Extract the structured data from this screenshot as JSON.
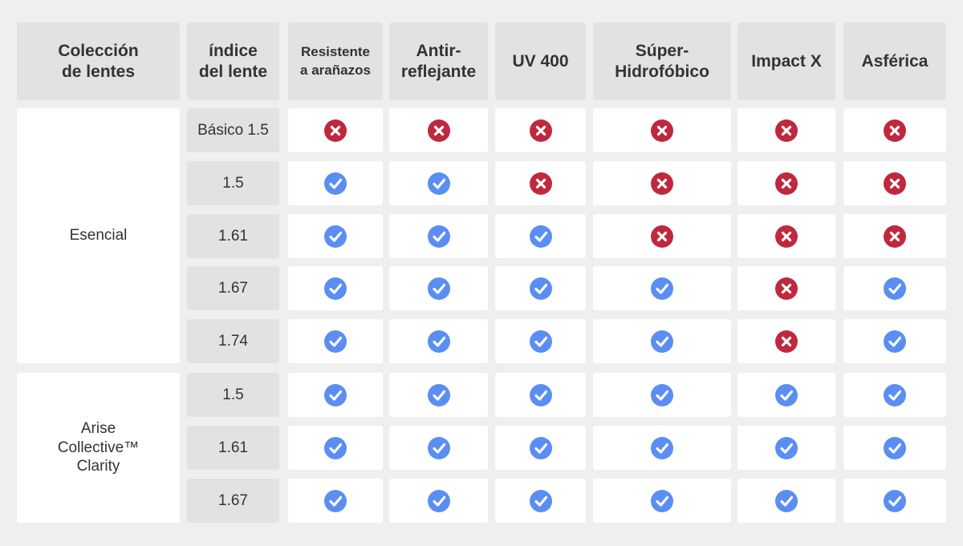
{
  "header": {
    "collection": "Colección\nde lentes",
    "index": "índice\ndel lente",
    "features": [
      "Resistente\na arañazos",
      "Antir-\nreflejante",
      "UV 400",
      "Súper-\nHidrofóbico",
      "Impact X",
      "Asférica"
    ]
  },
  "collections": [
    {
      "name": "Esencial",
      "rows": [
        {
          "index": "Básico 1.5",
          "features": [
            "no",
            "no",
            "no",
            "no",
            "no",
            "no"
          ]
        },
        {
          "index": "1.5",
          "features": [
            "yes",
            "yes",
            "no",
            "no",
            "no",
            "no"
          ]
        },
        {
          "index": "1.61",
          "features": [
            "yes",
            "yes",
            "yes",
            "no",
            "no",
            "no"
          ]
        },
        {
          "index": "1.67",
          "features": [
            "yes",
            "yes",
            "yes",
            "yes",
            "no",
            "yes"
          ]
        },
        {
          "index": "1.74",
          "features": [
            "yes",
            "yes",
            "yes",
            "yes",
            "no",
            "yes"
          ]
        }
      ]
    },
    {
      "name": "Arise\nCollective™\nClarity",
      "rows": [
        {
          "index": "1.5",
          "features": [
            "yes",
            "yes",
            "yes",
            "yes",
            "yes",
            "yes"
          ]
        },
        {
          "index": "1.61",
          "features": [
            "yes",
            "yes",
            "yes",
            "yes",
            "yes",
            "yes"
          ]
        },
        {
          "index": "1.67",
          "features": [
            "yes",
            "yes",
            "yes",
            "yes",
            "yes",
            "yes"
          ]
        }
      ]
    }
  ],
  "icons": {
    "yes": "check-icon",
    "no": "cross-icon"
  },
  "colors": {
    "yes": "#5b8ef2",
    "no": "#c0283d",
    "background": "#efefef",
    "header": "#e2e2e2"
  }
}
